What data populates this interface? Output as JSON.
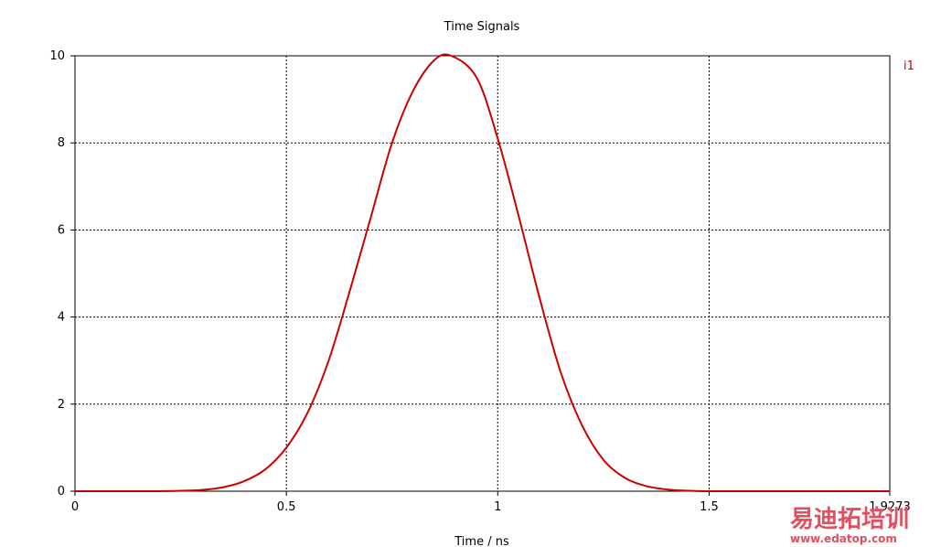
{
  "chart_data": {
    "type": "line",
    "title": "Time Signals",
    "xlabel": "Time / ns",
    "ylabel": "",
    "xlim": [
      0,
      1.9273
    ],
    "ylim": [
      0,
      10
    ],
    "x_ticks": [
      0,
      0.5,
      1,
      1.5
    ],
    "x_tick_labels": [
      "0",
      "0.5",
      "1",
      "1.5"
    ],
    "x_end_label": "1.9273",
    "y_ticks": [
      0,
      2,
      4,
      6,
      8,
      10
    ],
    "y_tick_labels": [
      "0",
      "2",
      "4",
      "6",
      "8",
      "10"
    ],
    "grid": true,
    "legend_position": "top-right",
    "series": [
      {
        "name": "i1",
        "color": "#cc0000",
        "x": [
          0,
          0.1,
          0.2,
          0.25,
          0.3,
          0.35,
          0.4,
          0.45,
          0.5,
          0.55,
          0.6,
          0.65,
          0.7,
          0.75,
          0.8,
          0.85,
          0.89,
          0.95,
          1.0,
          1.05,
          1.1,
          1.15,
          1.2,
          1.25,
          1.3,
          1.35,
          1.4,
          1.45,
          1.5,
          1.6,
          1.7,
          1.8,
          1.9273
        ],
        "values": [
          0,
          0,
          0,
          0.01,
          0.03,
          0.09,
          0.23,
          0.5,
          1.0,
          1.8,
          3.0,
          4.6,
          6.3,
          8.0,
          9.2,
          9.9,
          10.0,
          9.5,
          8.1,
          6.3,
          4.4,
          2.7,
          1.5,
          0.72,
          0.31,
          0.12,
          0.04,
          0.01,
          0,
          0,
          0,
          0,
          0
        ]
      }
    ]
  },
  "watermark": {
    "chinese_text": "易迪拓培训",
    "url_text": "www.edatop.com",
    "color": "#e05060"
  }
}
